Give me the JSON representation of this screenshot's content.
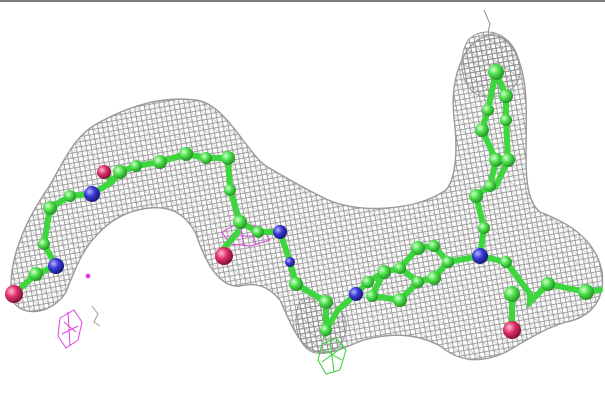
{
  "figure": {
    "subject": "ligand-electron-density-mesh",
    "colors": {
      "background": "#ffffff",
      "mesh": "#8e8e8e",
      "carbon": "#4ee04e",
      "nitrogen": "#3a3ad6",
      "oxygen": "#e0306a",
      "difference_density": "#e040e0",
      "green_density": "#30d030",
      "frame": "#2a2a2a"
    }
  }
}
